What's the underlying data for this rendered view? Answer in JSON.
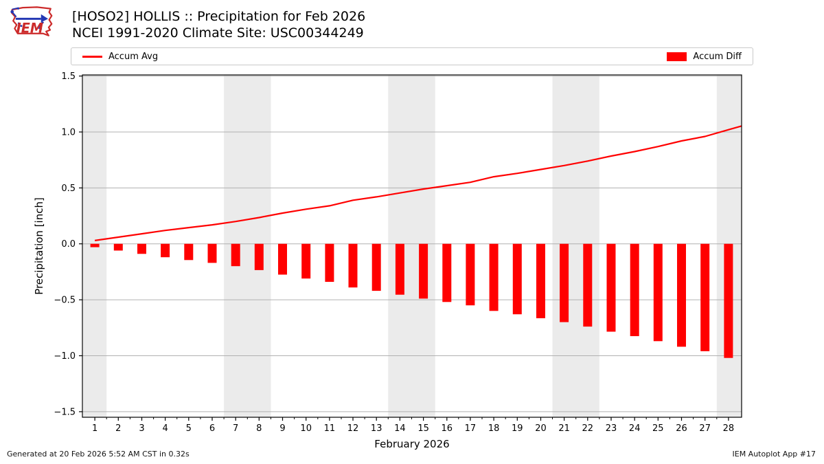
{
  "header": {
    "logo_text": "IEM",
    "title_line1": "[HOSO2] HOLLIS :: Precipitation for Feb 2026",
    "title_line2": "NCEI 1991-2020 Climate Site: USC00344249"
  },
  "legend": {
    "avg_label": "Accum Avg",
    "diff_label": "Accum Diff"
  },
  "footer": {
    "left": "Generated at 20 Feb 2026 5:52 AM CST in 0.32s",
    "right": "IEM Autoplot App #17"
  },
  "colors": {
    "series_red": "#ff0000",
    "weekend_band": "#ebebeb",
    "gridline": "#b0b0b0",
    "spine": "#000000",
    "logo_red": "#cc2b2b",
    "logo_blue": "#2438b4"
  },
  "chart_data": {
    "type": "line+bar",
    "title": "[HOSO2] HOLLIS :: Precipitation for Feb 2026",
    "subtitle": "NCEI 1991-2020 Climate Site: USC00344249",
    "xlabel": "February 2026",
    "ylabel": "Precipitation [inch]",
    "x": [
      1,
      2,
      3,
      4,
      5,
      6,
      7,
      8,
      9,
      10,
      11,
      12,
      13,
      14,
      15,
      16,
      17,
      18,
      19,
      20,
      21,
      22,
      23,
      24,
      25,
      26,
      27,
      28
    ],
    "xtick_labels": [
      "1",
      "2",
      "3",
      "4",
      "5",
      "6",
      "7",
      "8",
      "9",
      "10",
      "11",
      "12",
      "13",
      "14",
      "15",
      "16",
      "17",
      "18",
      "19",
      "20",
      "21",
      "22",
      "23",
      "24",
      "25",
      "26",
      "27",
      "28"
    ],
    "series": [
      {
        "name": "Accum Avg",
        "type": "line",
        "color": "#ff0000",
        "values": [
          0.03,
          0.06,
          0.09,
          0.12,
          0.145,
          0.17,
          0.2,
          0.235,
          0.275,
          0.31,
          0.34,
          0.39,
          0.42,
          0.455,
          0.49,
          0.52,
          0.55,
          0.6,
          0.63,
          0.665,
          0.7,
          0.74,
          0.785,
          0.825,
          0.87,
          0.92,
          0.96,
          1.02
        ]
      },
      {
        "name": "Accum Diff",
        "type": "bar",
        "color": "#ff0000",
        "values": [
          -0.03,
          -0.06,
          -0.09,
          -0.12,
          -0.145,
          -0.17,
          -0.2,
          -0.235,
          -0.275,
          -0.31,
          -0.34,
          -0.39,
          -0.42,
          -0.455,
          -0.49,
          -0.52,
          -0.55,
          -0.6,
          -0.63,
          -0.665,
          -0.7,
          -0.74,
          -0.785,
          -0.825,
          -0.87,
          -0.92,
          -0.96,
          -1.02
        ]
      }
    ],
    "ylim": [
      -1.55,
      1.51
    ],
    "xlim": [
      0.47,
      28.56
    ],
    "yticks": [
      -1.5,
      -1.0,
      -0.5,
      0.0,
      0.5,
      1.0,
      1.5
    ],
    "ytick_labels": [
      "−1.5",
      "−1.0",
      "−0.5",
      "0.0",
      "0.5",
      "1.0",
      "1.5"
    ],
    "grid": "horizontal-only",
    "weekend_bands": [
      [
        0.5,
        1.5
      ],
      [
        6.5,
        8.5
      ],
      [
        13.5,
        15.5
      ],
      [
        20.5,
        22.5
      ],
      [
        27.5,
        28.56
      ]
    ],
    "legend_position": "top"
  }
}
